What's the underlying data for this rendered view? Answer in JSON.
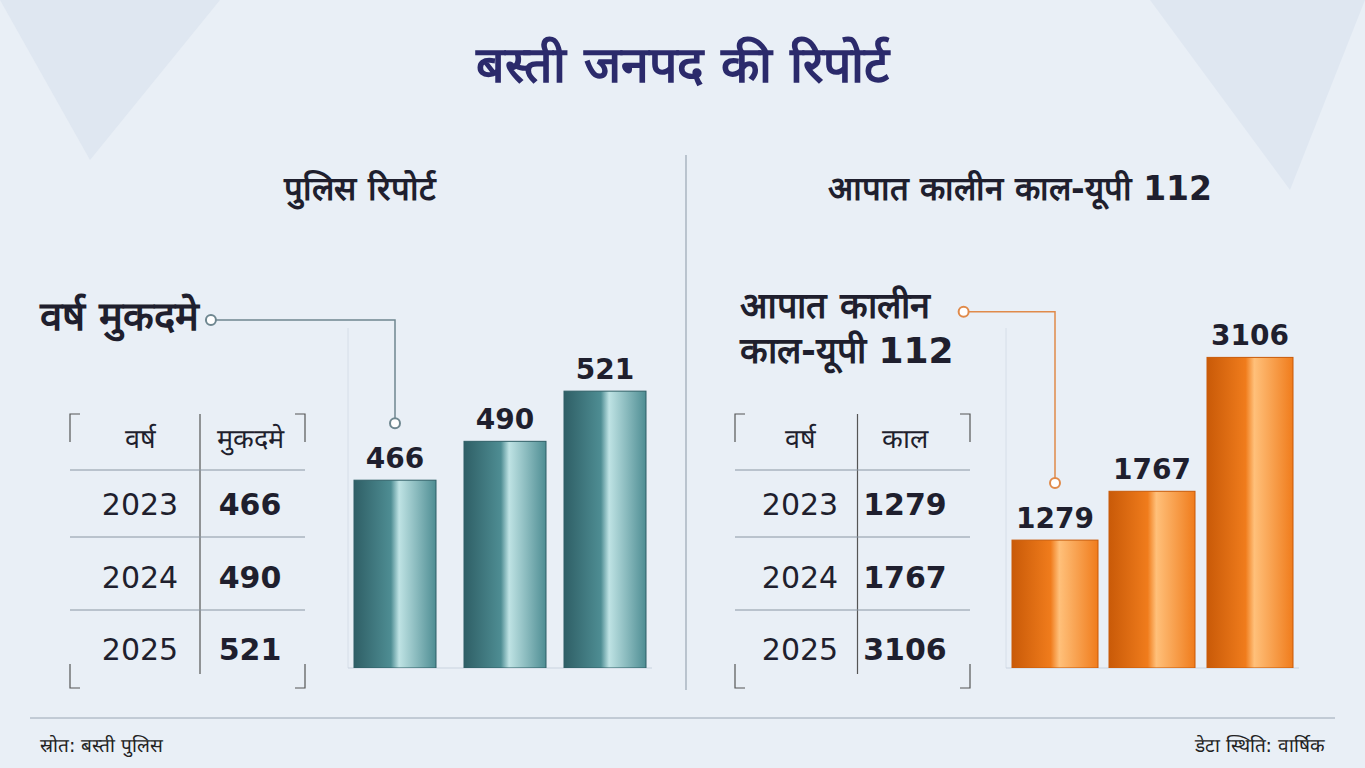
{
  "title": "बस्ती जनपद की रिपोर्ट",
  "source": "स्रोत: बस्ती पुलिस",
  "data_status": "डेटा स्थिति: वार्षिक",
  "chart_data": [
    {
      "type": "bar",
      "title": "पुलिस रिपोर्ट",
      "annotation": "वर्ष मुकदमे",
      "x_label": "वर्ष",
      "y_label": "मुकदमे",
      "categories": [
        "2023",
        "2024",
        "2025"
      ],
      "values": [
        466,
        490,
        521
      ],
      "color": "#4e8d93",
      "ylim": [
        350,
        560
      ],
      "data_labels": true,
      "tick_labels": false
    },
    {
      "type": "bar",
      "title": "आपात कालीन काल-यूपी 112",
      "annotation": "आपात कालीन काल-यूपी 112",
      "x_label": "वर्ष",
      "y_label": "काल",
      "categories": [
        "2023",
        "2024",
        "2025"
      ],
      "values": [
        1279,
        1767,
        3106
      ],
      "color": "#f07c1c",
      "ylim": [
        0,
        3400
      ],
      "data_labels": true,
      "tick_labels": false
    }
  ]
}
